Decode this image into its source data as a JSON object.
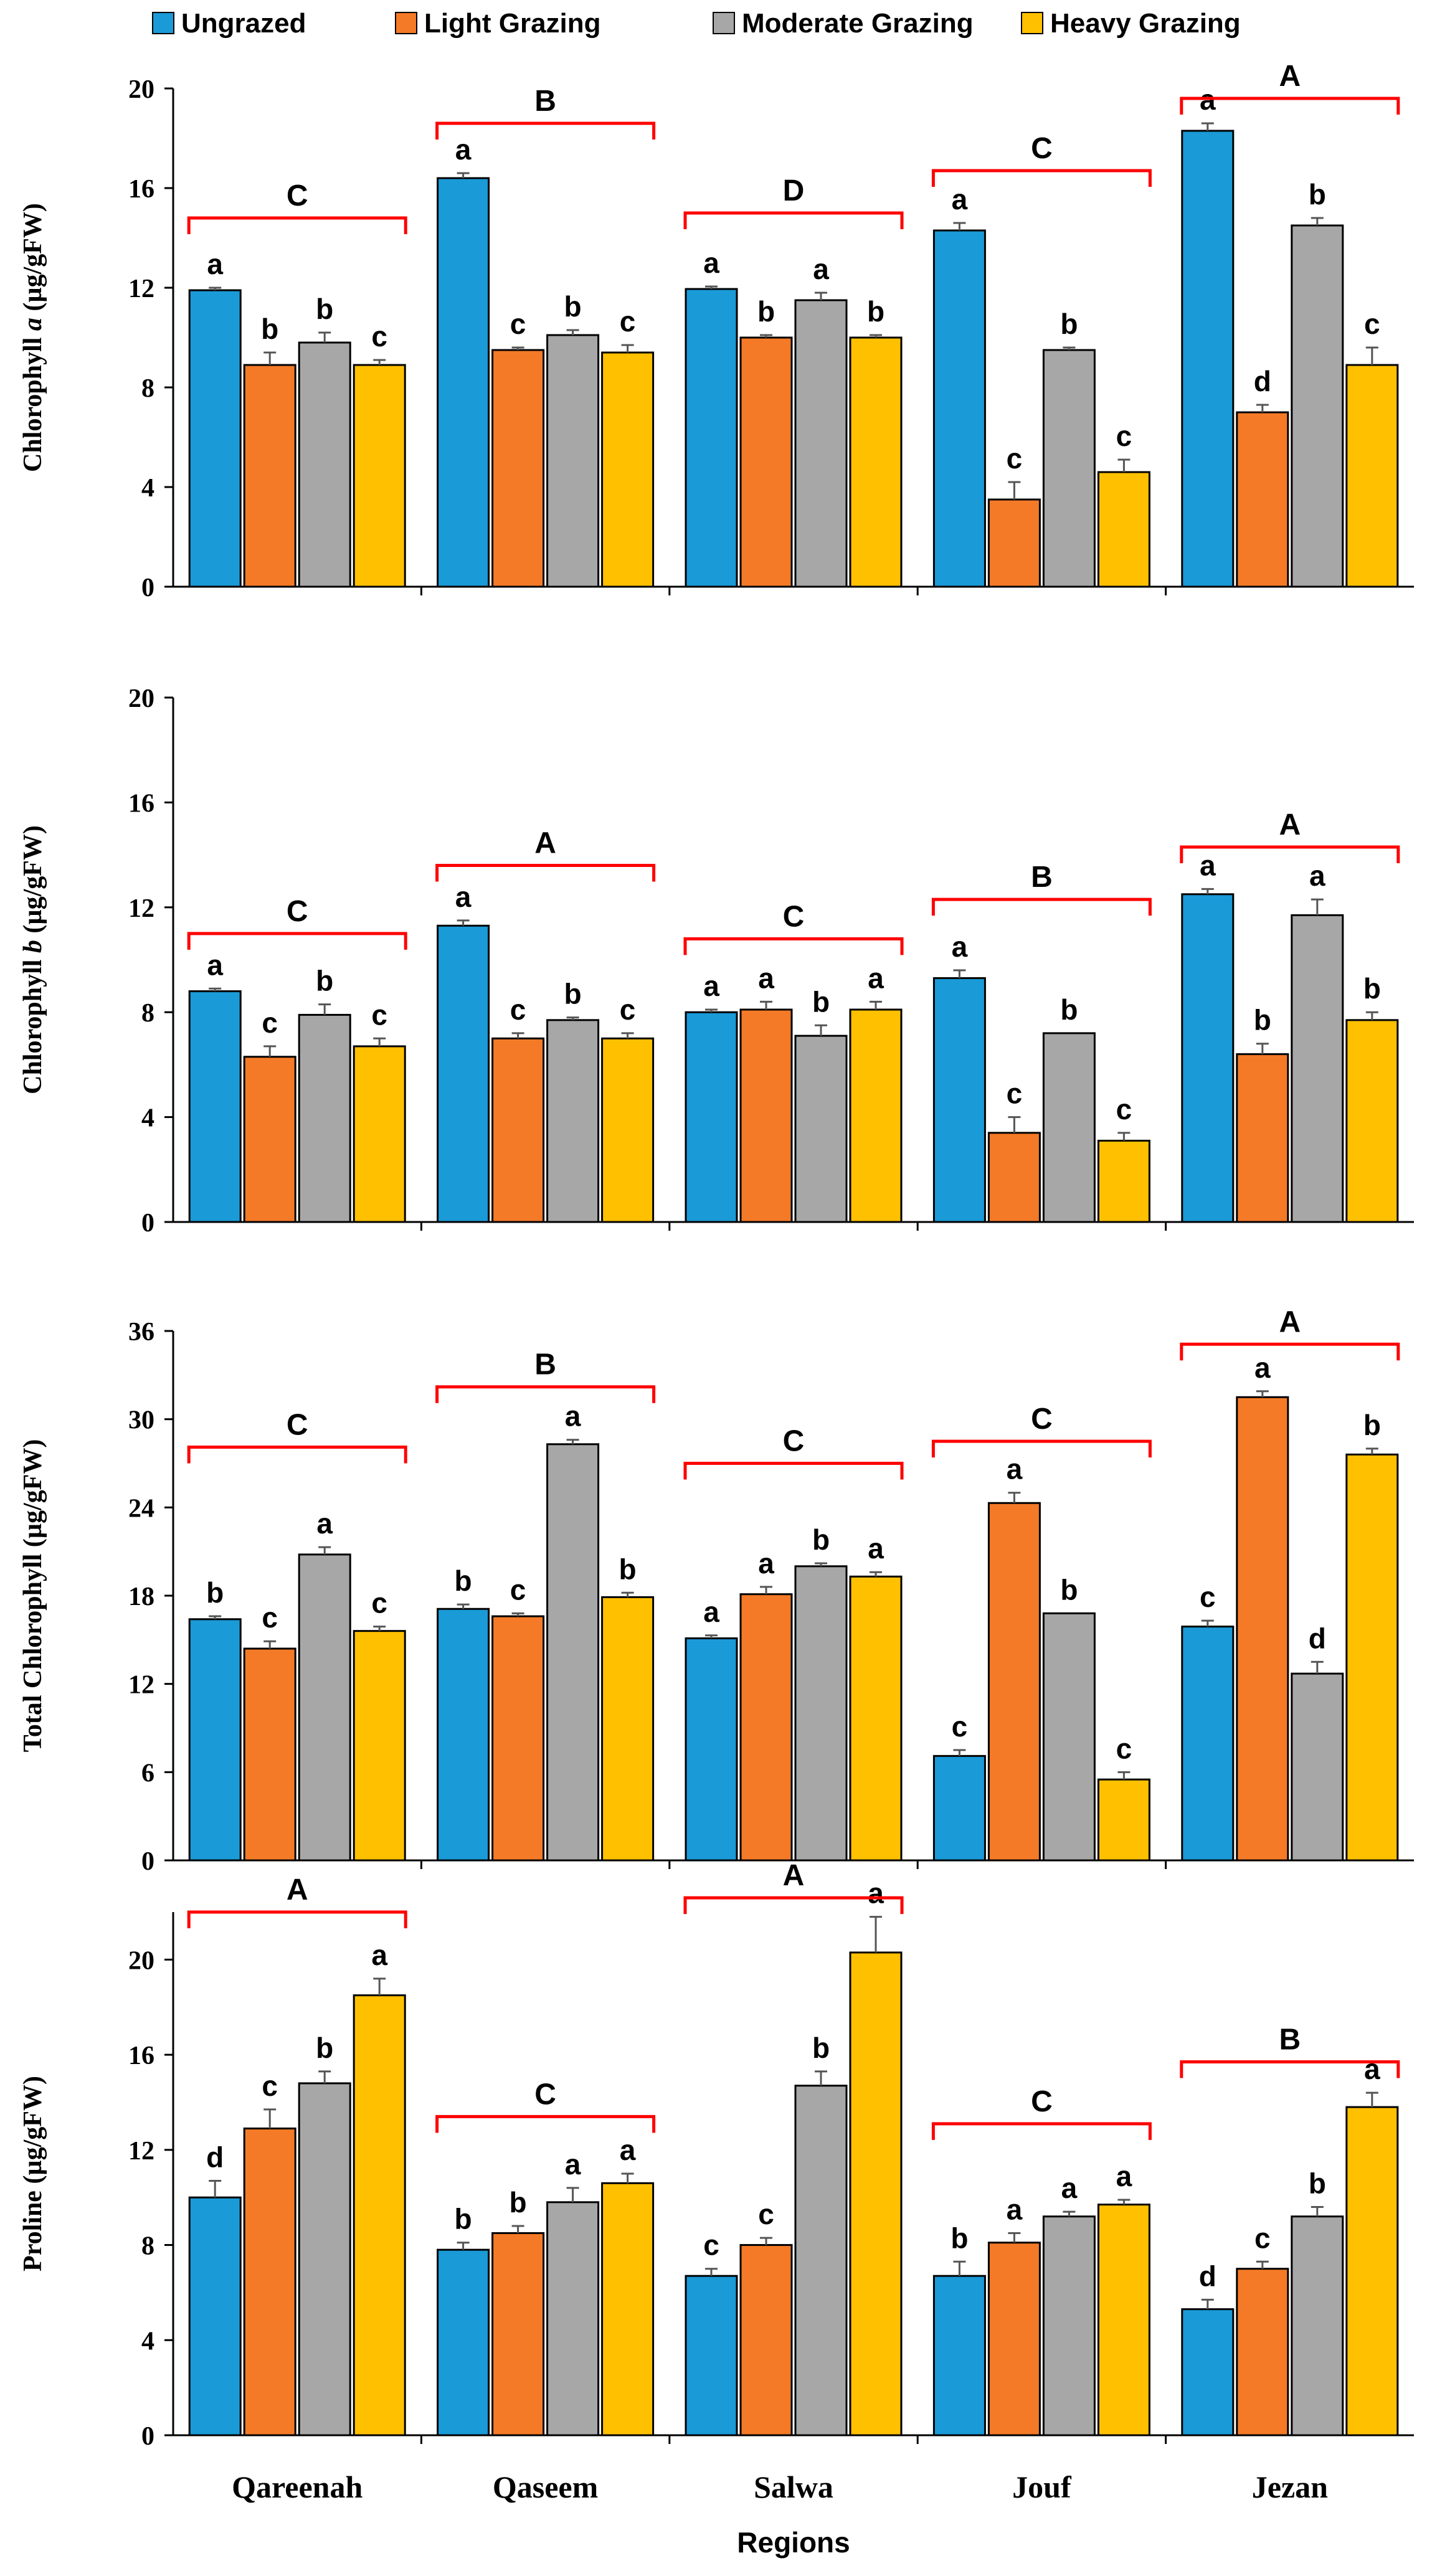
{
  "legend": {
    "items": [
      {
        "name": "Ungrazed",
        "color": "#1a9ad6"
      },
      {
        "name": "Light Grazing",
        "color": "#f47a27"
      },
      {
        "name": "Moderate Grazing",
        "color": "#a7a7a7"
      },
      {
        "name": "Heavy Grazing",
        "color": "#ffc000"
      }
    ]
  },
  "x_axis_title": "Regions",
  "colors": {
    "bracket": "#ff0000",
    "axis": "#000000",
    "errorbar": "#555555"
  },
  "chart_data": [
    {
      "type": "bar",
      "title": "",
      "ylabel_pre": "Chlorophyll ",
      "ylabel_var": "a",
      "ylabel_post": " (µg/gFW)",
      "ylim": [
        0,
        20
      ],
      "yticks": [
        "0",
        "4",
        "8",
        "12",
        "16",
        "20"
      ],
      "categories": [
        "Qareenah",
        "Qaseem",
        "Salwa",
        "Jouf",
        "Jezan"
      ],
      "series": [
        {
          "name": "Ungrazed",
          "values": [
            11.9,
            16.4,
            11.95,
            14.3,
            18.3
          ],
          "errors": [
            0.1,
            0.2,
            0.1,
            0.3,
            0.3
          ],
          "letters": [
            "a",
            "a",
            "a",
            "a",
            "a"
          ]
        },
        {
          "name": "Light Grazing",
          "values": [
            8.9,
            9.5,
            10.0,
            3.5,
            7.0
          ],
          "errors": [
            0.5,
            0.1,
            0.1,
            0.7,
            0.3
          ],
          "letters": [
            "b",
            "c",
            "b",
            "c",
            "d"
          ]
        },
        {
          "name": "Moderate Grazing",
          "values": [
            9.8,
            10.1,
            11.5,
            9.5,
            14.5
          ],
          "errors": [
            0.4,
            0.2,
            0.3,
            0.1,
            0.3
          ],
          "letters": [
            "b",
            "b",
            "a",
            "b",
            "b"
          ]
        },
        {
          "name": "Heavy Grazing",
          "values": [
            8.9,
            9.4,
            10.0,
            4.6,
            8.9
          ],
          "errors": [
            0.2,
            0.3,
            0.1,
            0.5,
            0.7
          ],
          "letters": [
            "c",
            "c",
            "b",
            "c",
            "c"
          ]
        }
      ],
      "brackets": [
        {
          "letter": "C",
          "level": 14.8
        },
        {
          "letter": "B",
          "level": 18.6
        },
        {
          "letter": "D",
          "level": 15.0
        },
        {
          "letter": "C",
          "level": 16.7
        },
        {
          "letter": "A",
          "level": 19.6
        }
      ]
    },
    {
      "type": "bar",
      "title": "",
      "ylabel_pre": "Chlorophyll ",
      "ylabel_var": "b",
      "ylabel_post": " (µg/gFW)",
      "ylim": [
        0,
        20
      ],
      "yticks": [
        "0",
        "4",
        "8",
        "12",
        "16",
        "20"
      ],
      "categories": [
        "Qareenah",
        "Qaseem",
        "Salwa",
        "Jouf",
        "Jezan"
      ],
      "series": [
        {
          "name": "Ungrazed",
          "values": [
            8.8,
            11.3,
            8.0,
            9.3,
            12.5
          ],
          "errors": [
            0.1,
            0.2,
            0.1,
            0.3,
            0.2
          ],
          "letters": [
            "a",
            "a",
            "a",
            "a",
            "a"
          ]
        },
        {
          "name": "Light Grazing",
          "values": [
            6.3,
            7.0,
            8.1,
            3.4,
            6.4
          ],
          "errors": [
            0.4,
            0.2,
            0.3,
            0.6,
            0.4
          ],
          "letters": [
            "c",
            "c",
            "a",
            "c",
            "b"
          ]
        },
        {
          "name": "Moderate Grazing",
          "values": [
            7.9,
            7.7,
            7.1,
            7.2,
            11.7
          ],
          "errors": [
            0.4,
            0.1,
            0.4,
            0.0,
            0.6
          ],
          "letters": [
            "b",
            "b",
            "b",
            "b",
            "a"
          ]
        },
        {
          "name": "Heavy Grazing",
          "values": [
            6.7,
            7.0,
            8.1,
            3.1,
            7.7
          ],
          "errors": [
            0.3,
            0.2,
            0.3,
            0.3,
            0.3
          ],
          "letters": [
            "c",
            "c",
            "a",
            "c",
            "b"
          ]
        }
      ],
      "brackets": [
        {
          "letter": "C",
          "level": 11.0
        },
        {
          "letter": "A",
          "level": 13.6
        },
        {
          "letter": "C",
          "level": 10.8
        },
        {
          "letter": "B",
          "level": 12.3
        },
        {
          "letter": "A",
          "level": 14.3
        }
      ]
    },
    {
      "type": "bar",
      "title": "",
      "ylabel_pre": "Total Chlorophyll  (µg/gFW)",
      "ylabel_var": "",
      "ylabel_post": "",
      "ylim": [
        0,
        36
      ],
      "yticks": [
        "0",
        "6",
        "12",
        "18",
        "24",
        "30",
        "36"
      ],
      "categories": [
        "Qareenah",
        "Qaseem",
        "Salwa",
        "Jouf",
        "Jezan"
      ],
      "series": [
        {
          "name": "Ungrazed",
          "values": [
            16.4,
            17.1,
            15.1,
            7.1,
            15.9
          ],
          "errors": [
            0.2,
            0.3,
            0.2,
            0.4,
            0.4
          ],
          "letters": [
            "b",
            "b",
            "a",
            "c",
            "c"
          ]
        },
        {
          "name": "Light Grazing",
          "values": [
            14.4,
            16.6,
            18.1,
            24.3,
            31.5
          ],
          "errors": [
            0.5,
            0.2,
            0.5,
            0.7,
            0.4
          ],
          "letters": [
            "c",
            "c",
            "a",
            "a",
            "a"
          ]
        },
        {
          "name": "Moderate Grazing",
          "values": [
            20.8,
            28.3,
            20.0,
            16.8,
            12.7
          ],
          "errors": [
            0.5,
            0.3,
            0.2,
            0.0,
            0.8
          ],
          "letters": [
            "a",
            "a",
            "b",
            "b",
            "d"
          ]
        },
        {
          "name": "Heavy Grazing",
          "values": [
            15.6,
            17.9,
            19.3,
            5.5,
            27.6
          ],
          "errors": [
            0.3,
            0.3,
            0.3,
            0.5,
            0.4
          ],
          "letters": [
            "c",
            "b",
            "a",
            "c",
            "b"
          ]
        }
      ],
      "brackets": [
        {
          "letter": "C",
          "level": 28.1
        },
        {
          "letter": "B",
          "level": 32.2
        },
        {
          "letter": "C",
          "level": 27.0
        },
        {
          "letter": "C",
          "level": 28.5
        },
        {
          "letter": "A",
          "level": 35.1
        }
      ]
    },
    {
      "type": "bar",
      "title": "",
      "ylabel_pre": "Proline  (µg/gFW)",
      "ylabel_var": "",
      "ylabel_post": "",
      "ylim": [
        0,
        22
      ],
      "yticks": [
        "0",
        "4",
        "8",
        "12",
        "16",
        "20"
      ],
      "categories": [
        "Qareenah",
        "Qaseem",
        "Salwa",
        "Jouf",
        "Jezan"
      ],
      "series": [
        {
          "name": "Ungrazed",
          "values": [
            10.0,
            7.8,
            6.7,
            6.7,
            5.3
          ],
          "errors": [
            0.7,
            0.3,
            0.3,
            0.6,
            0.4
          ],
          "letters": [
            "d",
            "b",
            "c",
            "b",
            "d"
          ]
        },
        {
          "name": "Light Grazing",
          "values": [
            12.9,
            8.5,
            8.0,
            8.1,
            7.0
          ],
          "errors": [
            0.8,
            0.3,
            0.3,
            0.4,
            0.3
          ],
          "letters": [
            "c",
            "b",
            "c",
            "a",
            "c"
          ]
        },
        {
          "name": "Moderate Grazing",
          "values": [
            14.8,
            9.8,
            14.7,
            9.2,
            9.2
          ],
          "errors": [
            0.5,
            0.6,
            0.6,
            0.2,
            0.4
          ],
          "letters": [
            "b",
            "a",
            "b",
            "a",
            "b"
          ]
        },
        {
          "name": "Heavy Grazing",
          "values": [
            18.5,
            10.6,
            20.3,
            9.7,
            13.8
          ],
          "errors": [
            0.7,
            0.4,
            1.5,
            0.2,
            0.6
          ],
          "letters": [
            "a",
            "a",
            "a",
            "a",
            "a"
          ]
        }
      ],
      "brackets": [
        {
          "letter": "A",
          "level": 22.0
        },
        {
          "letter": "C",
          "level": 13.4
        },
        {
          "letter": "A",
          "level": 22.6
        },
        {
          "letter": "C",
          "level": 13.1
        },
        {
          "letter": "B",
          "level": 15.7
        }
      ]
    }
  ]
}
